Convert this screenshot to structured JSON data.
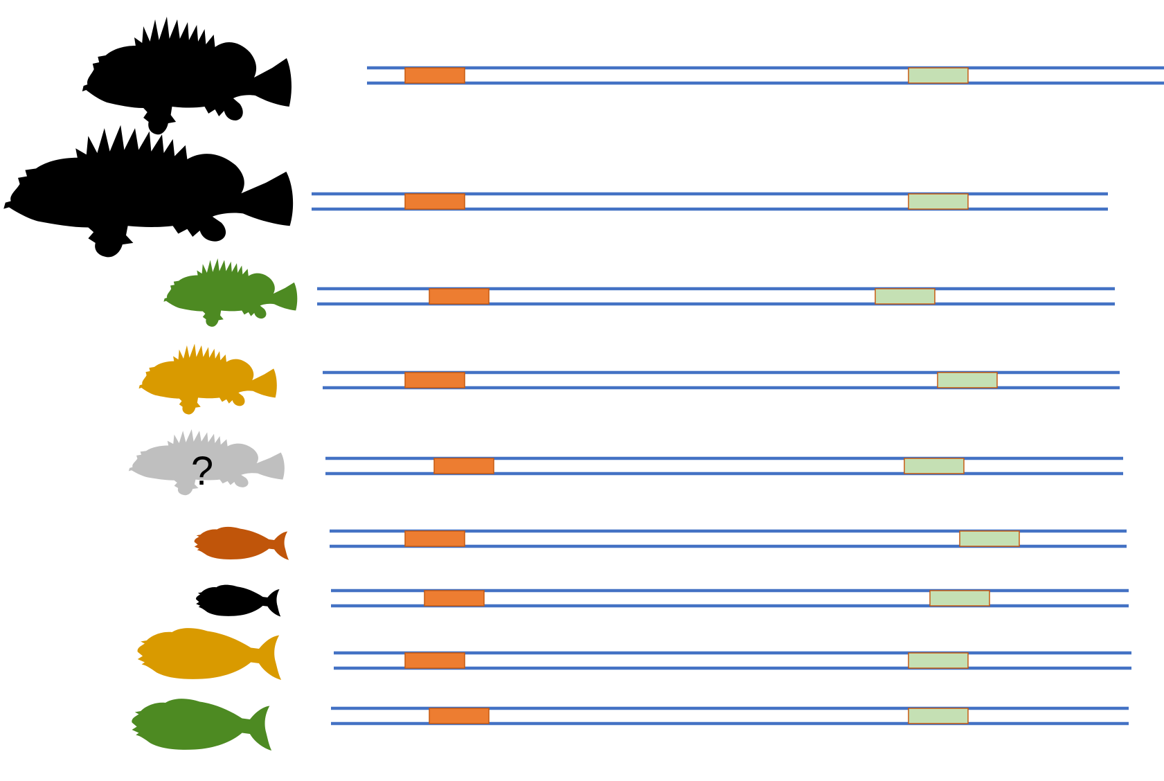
{
  "colors": {
    "strand": "#4472C4",
    "marker_a_fill": "#ED7D31",
    "marker_a_stroke": "#C55A11",
    "marker_b_fill": "#C5E0B4",
    "marker_b_stroke": "#C55A11",
    "fish_black": "#000000",
    "fish_green": "#4D8A22",
    "fish_gold": "#D99A00",
    "fish_grey": "#BFBFBF",
    "fish_rust": "#C0550A"
  },
  "rows": [
    {
      "fish": {
        "form": "spiny",
        "color": "fish_black",
        "icon": "rockfish-silhouette-icon"
      },
      "unknown_label": ""
    },
    {
      "fish": {
        "form": "spiny",
        "color": "fish_black",
        "icon": "rockfish-silhouette-icon"
      },
      "unknown_label": ""
    },
    {
      "fish": {
        "form": "spiny",
        "color": "fish_green",
        "icon": "rockfish-silhouette-icon"
      },
      "unknown_label": ""
    },
    {
      "fish": {
        "form": "spiny",
        "color": "fish_gold",
        "icon": "rockfish-silhouette-icon"
      },
      "unknown_label": ""
    },
    {
      "fish": {
        "form": "spiny",
        "color": "fish_grey",
        "icon": "rockfish-silhouette-icon"
      },
      "unknown_label": "?"
    },
    {
      "fish": {
        "form": "smooth",
        "color": "fish_rust",
        "icon": "filefish-silhouette-icon"
      },
      "unknown_label": ""
    },
    {
      "fish": {
        "form": "smooth",
        "color": "fish_black",
        "icon": "filefish-silhouette-icon"
      },
      "unknown_label": ""
    },
    {
      "fish": {
        "form": "smooth",
        "color": "fish_gold",
        "icon": "filefish-silhouette-icon"
      },
      "unknown_label": ""
    },
    {
      "fish": {
        "form": "smooth",
        "color": "fish_green",
        "icon": "filefish-silhouette-icon"
      },
      "unknown_label": ""
    }
  ]
}
